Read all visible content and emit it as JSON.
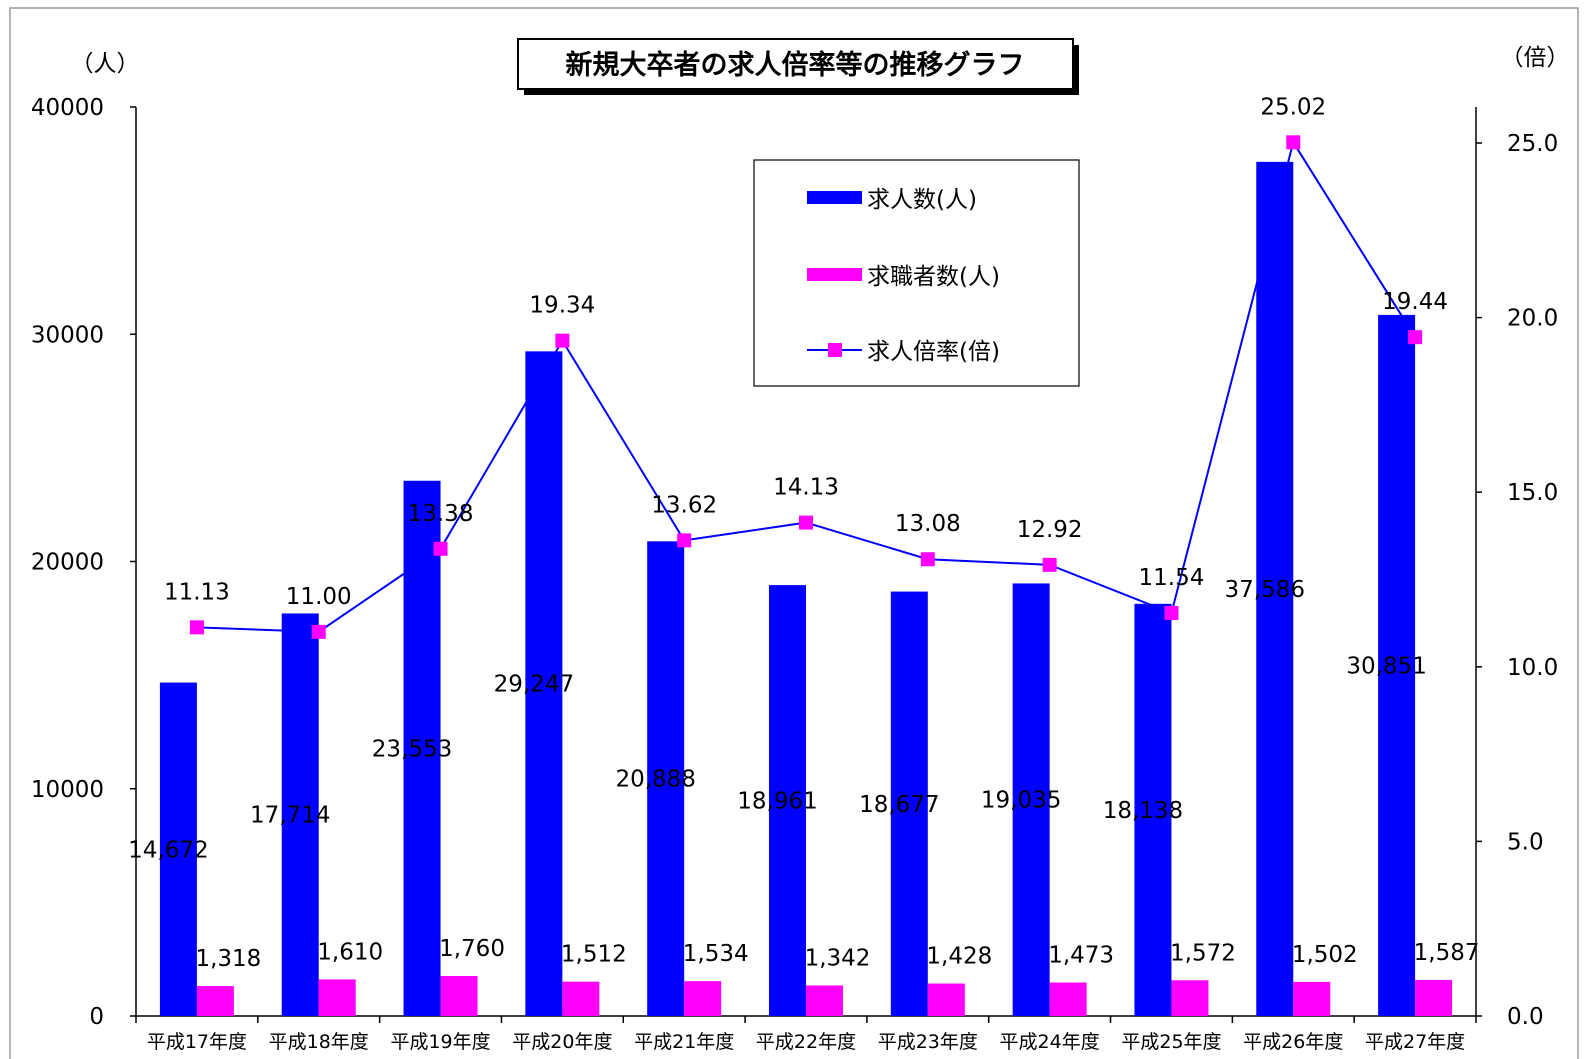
{
  "chart_data": {
    "type": "bar",
    "title": "新規大卒者の求人倍率等の推移グラフ",
    "y_left_unit": "（人）",
    "y_right_unit": "（倍）",
    "categories": [
      "平成17年度",
      "平成18年度",
      "平成19年度",
      "平成20年度",
      "平成21年度",
      "平成22年度",
      "平成23年度",
      "平成24年度",
      "平成25年度",
      "平成26年度",
      "平成27年度"
    ],
    "series": [
      {
        "name": "求人数(人)",
        "kind": "bar",
        "axis": "left",
        "color": "#0000ff",
        "values": [
          14672,
          17714,
          23553,
          29247,
          20888,
          18961,
          18677,
          19035,
          18138,
          37586,
          30851
        ],
        "labels": [
          "14,672",
          "17,714",
          "23,553",
          "29,247",
          "20,888",
          "18,961",
          "18,677",
          "19,035",
          "18,138",
          "37,586",
          "30,851"
        ]
      },
      {
        "name": "求職者数(人)",
        "kind": "bar",
        "axis": "left",
        "color": "#ff00ff",
        "values": [
          1318,
          1610,
          1760,
          1512,
          1534,
          1342,
          1428,
          1473,
          1572,
          1502,
          1587
        ],
        "labels": [
          "1,318",
          "1,610",
          "1,760",
          "1,512",
          "1,534",
          "1,342",
          "1,428",
          "1,473",
          "1,572",
          "1,502",
          "1,587"
        ]
      },
      {
        "name": "求人倍率(倍)",
        "kind": "line",
        "axis": "right",
        "color": "#0000ff",
        "marker_color": "#ff00ff",
        "values": [
          11.13,
          11.0,
          13.38,
          19.34,
          13.62,
          14.13,
          13.08,
          12.92,
          11.54,
          25.02,
          19.44
        ],
        "labels": [
          "11.13",
          "11.00",
          "13.38",
          "19.34",
          "13.62",
          "14.13",
          "13.08",
          "12.92",
          "11.54",
          "25.02",
          "19.44"
        ]
      }
    ],
    "y_left": {
      "min": 0,
      "max": 40000,
      "ticks": [
        "0",
        "10000",
        "20000",
        "30000",
        "40000"
      ]
    },
    "y_right": {
      "min": 0,
      "max": 26,
      "ticks": [
        "0.0",
        "5.0",
        "10.0",
        "15.0",
        "20.0",
        "25.0"
      ]
    },
    "legend_position": "top-center",
    "grid": false
  }
}
